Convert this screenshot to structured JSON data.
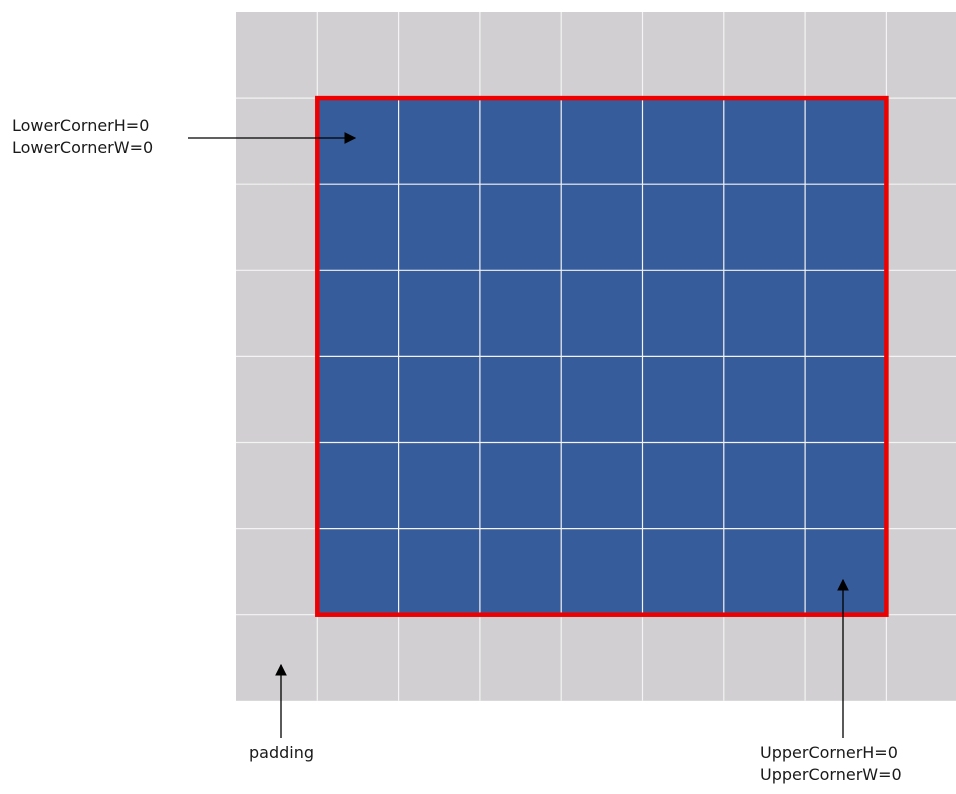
{
  "colors": {
    "padding_fill": "#d1cfd1",
    "grid_line": "#f4f4f4",
    "inner_fill": "#365c9c",
    "highlight_border": "#ee0000",
    "arrow": "#000000"
  },
  "grid": {
    "columns": 9,
    "rows": 8,
    "inner_columns": 7,
    "inner_rows": 6,
    "padding_cells": 1
  },
  "annotations": {
    "lower_corner": {
      "line1": "LowerCornerH=0",
      "line2": "LowerCornerW=0"
    },
    "padding": {
      "text": "padding"
    },
    "upper_corner": {
      "line1": "UpperCornerH=0",
      "line2": "UpperCornerW=0"
    }
  }
}
